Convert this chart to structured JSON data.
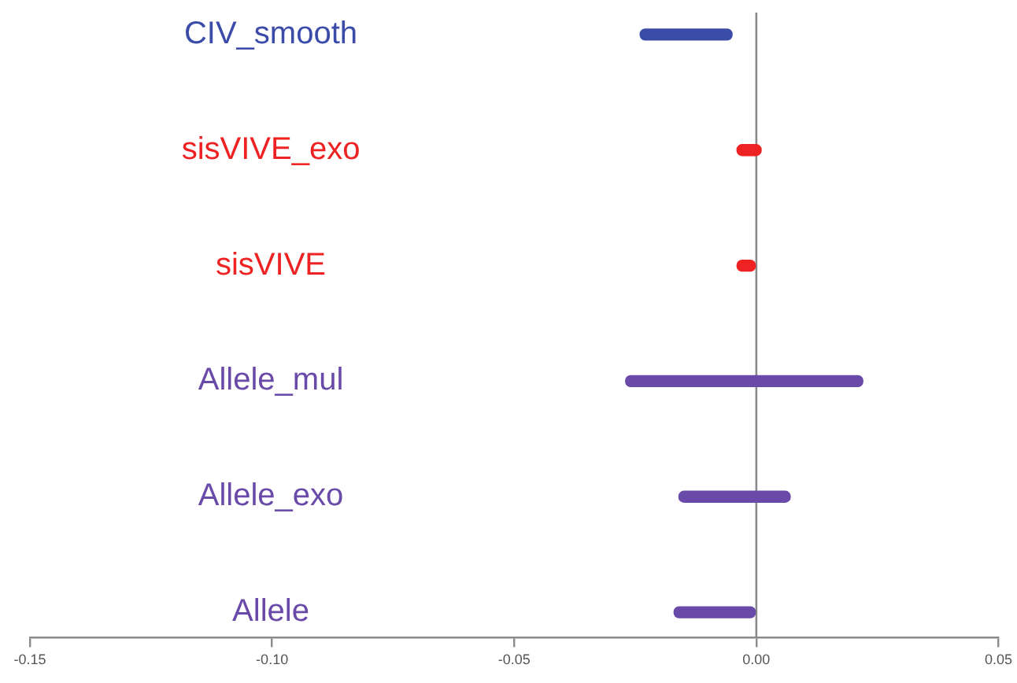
{
  "chart_data": {
    "type": "bar",
    "orientation": "horizontal",
    "categories": [
      "CIV_smooth",
      "sisVIVE_exo",
      "sisVIVE",
      "Allele_mul",
      "Allele_exo",
      "Allele"
    ],
    "base": [
      -0.024,
      -0.004,
      -0.004,
      -0.027,
      -0.016,
      -0.017
    ],
    "values": [
      0.019,
      0.005,
      0.004,
      0.049,
      0.023,
      0.017
    ],
    "colors": [
      "#3a4ba8",
      "#ee2222",
      "#ee2222",
      "#6a4aa8",
      "#6a4aa8",
      "#6a4aa8"
    ],
    "xlim": [
      -0.15,
      0.05
    ],
    "xticks": [
      -0.15,
      {
        "value": -0.1,
        "label": "-0.10"
      },
      -0.05,
      {
        "value": 0,
        "label": "0.00"
      },
      0.05
    ],
    "ref_lines": [
      {
        "axis": "x",
        "value": 0,
        "color": "#8a8a8a"
      }
    ]
  }
}
